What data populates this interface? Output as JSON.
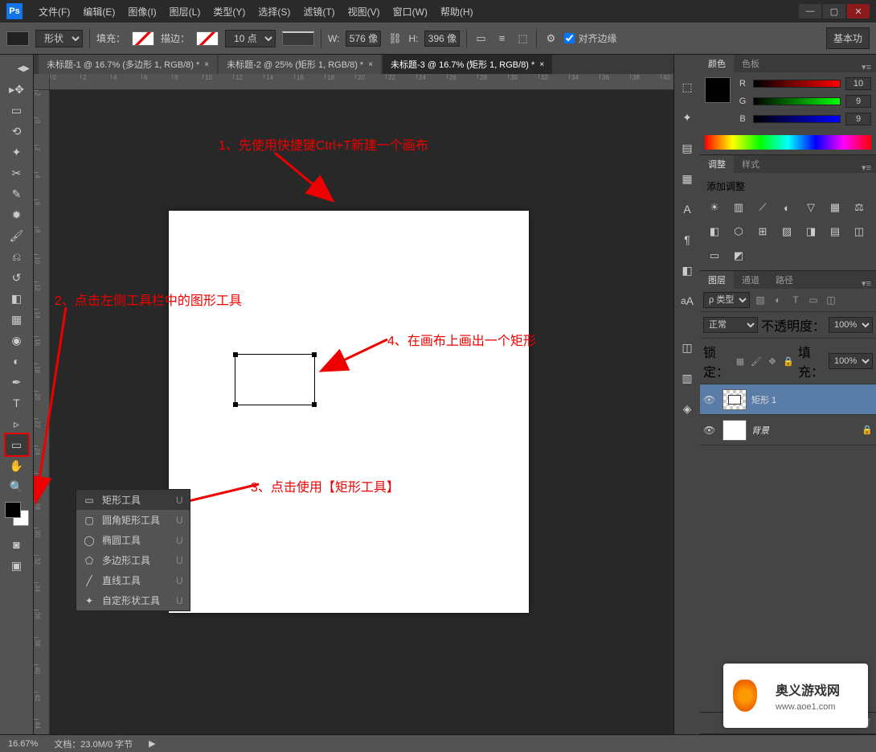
{
  "menubar": {
    "items": [
      "文件(F)",
      "编辑(E)",
      "图像(I)",
      "图层(L)",
      "类型(Y)",
      "选择(S)",
      "滤镜(T)",
      "视图(V)",
      "窗口(W)",
      "帮助(H)"
    ]
  },
  "optionsbar": {
    "shape_mode": "形状",
    "fill_label": "填充：",
    "stroke_label": "描边：",
    "stroke_width": "10 点",
    "w_label": "W:",
    "w_val": "576 像",
    "h_label": "H:",
    "h_val": "396 像",
    "align_label": "对齐边缘",
    "right_btn": "基本功"
  },
  "tabs": [
    {
      "label": "未标题-1 @ 16.7% (多边形 1, RGB/8) *",
      "active": false
    },
    {
      "label": "未标题-2 @ 25% (矩形 1, RGB/8) *",
      "active": false
    },
    {
      "label": "未标题-3 @ 16.7% (矩形 1, RGB/8) *",
      "active": true
    }
  ],
  "ruler_h": [
    "0",
    "2",
    "4",
    "6",
    "8",
    "10",
    "12",
    "14",
    "16",
    "18",
    "20",
    "22",
    "24",
    "26",
    "28",
    "30",
    "32",
    "34",
    "36",
    "38",
    "40"
  ],
  "ruler_v": [
    "2",
    "0",
    "2",
    "4",
    "6",
    "8",
    "10",
    "12",
    "14",
    "16",
    "18",
    "20",
    "22",
    "24",
    "26",
    "28",
    "30",
    "32",
    "34",
    "36",
    "38",
    "40",
    "42",
    "44",
    "46"
  ],
  "annotations": {
    "a1": "1、先使用快捷键Ctrl+T新建一个画布",
    "a2": "2、点击左侧工具栏中的图形工具",
    "a3": "3、点击使用【矩形工具】",
    "a4": "4、在画布上画出一个矩形"
  },
  "tool_flyout": {
    "items": [
      {
        "label": "矩形工具",
        "key": "U",
        "selected": true
      },
      {
        "label": "圆角矩形工具",
        "key": "U"
      },
      {
        "label": "椭圆工具",
        "key": "U"
      },
      {
        "label": "多边形工具",
        "key": "U"
      },
      {
        "label": "直线工具",
        "key": "U"
      },
      {
        "label": "自定形状工具",
        "key": "U"
      }
    ]
  },
  "panels": {
    "color": {
      "tab1": "颜色",
      "tab2": "色板",
      "r_label": "R",
      "r_val": "10",
      "g_label": "G",
      "g_val": "9",
      "b_label": "B",
      "b_val": "9"
    },
    "adjustments": {
      "tab1": "调整",
      "tab2": "样式",
      "title": "添加调整"
    },
    "layers": {
      "tab1": "图层",
      "tab2": "通道",
      "tab3": "路径",
      "filter_kind": "ρ 类型",
      "blend": "正常",
      "opacity_label": "不透明度：",
      "opacity_val": "100%",
      "lock_label": "锁定：",
      "fill_label": "填充：",
      "fill_val": "100%",
      "layer1": "矩形 1",
      "layer2": "背景"
    }
  },
  "statusbar": {
    "zoom": "16.67%",
    "doc": "文档：23.0M/0 字节"
  },
  "watermark": {
    "text": "奥义游戏网",
    "url": "www.aoe1.com"
  },
  "colors": {
    "annotation": "#e00000",
    "canvas_bg": "#ffffff",
    "workspace_bg": "#282828"
  }
}
